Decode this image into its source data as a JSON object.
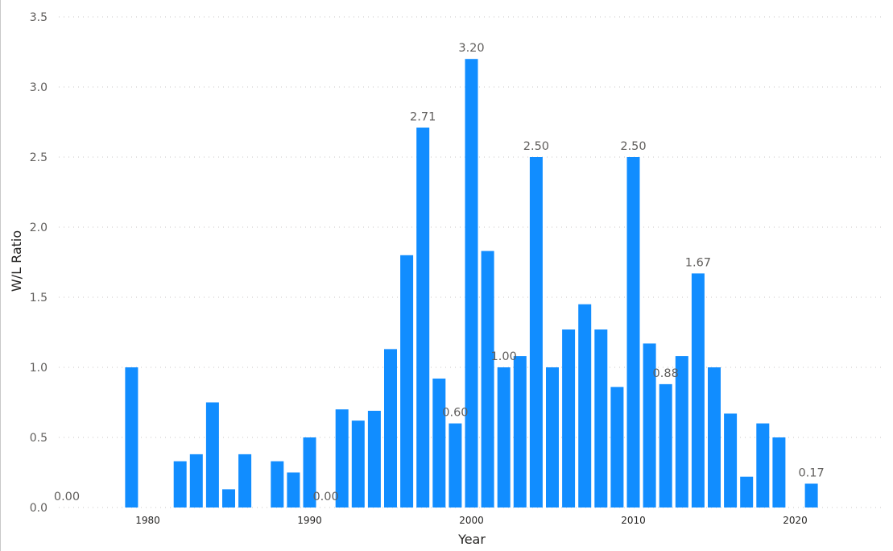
{
  "chart_data": {
    "type": "bar",
    "xlabel": "Year",
    "ylabel": "W/L Ratio",
    "ylim": [
      0,
      3.5
    ],
    "xlim": [
      1974,
      2025
    ],
    "grid": true,
    "bar_color": "#118dff",
    "yticks": [
      "0.0",
      "0.5",
      "1.0",
      "1.5",
      "2.0",
      "2.5",
      "3.0",
      "3.5"
    ],
    "xticks": [
      "1980",
      "1990",
      "2000",
      "2010",
      "2020"
    ],
    "categories": [
      1975,
      1979,
      1982,
      1983,
      1984,
      1985,
      1986,
      1988,
      1989,
      1990,
      1991,
      1992,
      1993,
      1994,
      1995,
      1996,
      1997,
      1998,
      1999,
      2000,
      2001,
      2002,
      2003,
      2004,
      2005,
      2006,
      2007,
      2008,
      2009,
      2010,
      2011,
      2012,
      2013,
      2014,
      2015,
      2016,
      2017,
      2018,
      2019,
      2021
    ],
    "values": [
      0.0,
      1.0,
      0.33,
      0.38,
      0.75,
      0.13,
      0.38,
      0.33,
      0.25,
      0.5,
      0.0,
      0.7,
      0.62,
      0.69,
      1.13,
      1.8,
      2.71,
      0.92,
      0.6,
      3.2,
      1.83,
      1.0,
      1.08,
      2.5,
      1.0,
      1.27,
      1.45,
      1.27,
      0.86,
      2.5,
      1.17,
      0.88,
      1.08,
      1.67,
      1.0,
      0.67,
      0.22,
      0.6,
      0.5,
      0.17
    ],
    "data_labels": [
      {
        "x": 1975,
        "text": "0.00"
      },
      {
        "x": 1991,
        "text": "0.00"
      },
      {
        "x": 1997,
        "text": "2.71"
      },
      {
        "x": 1999,
        "text": "0.60"
      },
      {
        "x": 2000,
        "text": "3.20"
      },
      {
        "x": 2002,
        "text": "1.00"
      },
      {
        "x": 2004,
        "text": "2.50"
      },
      {
        "x": 2010,
        "text": "2.50"
      },
      {
        "x": 2012,
        "text": "0.88"
      },
      {
        "x": 2014,
        "text": "1.67"
      },
      {
        "x": 2021,
        "text": "0.17"
      }
    ]
  }
}
